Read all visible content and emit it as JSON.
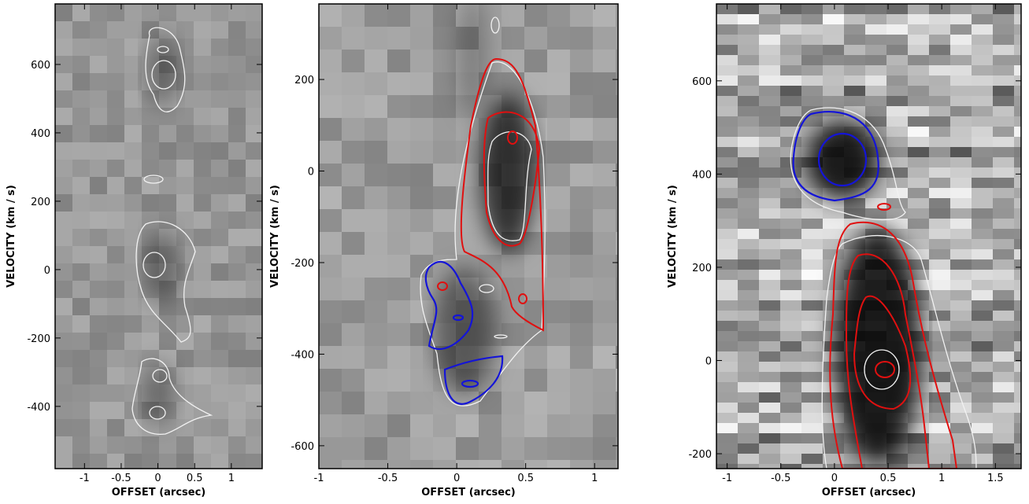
{
  "chart_data": [
    {
      "type": "image",
      "xlabel": "OFFSET (arcsec)",
      "ylabel": "VELOCITY (km / s)",
      "xlim": [
        -1.4,
        1.42
      ],
      "xticks": [
        -1,
        -0.5,
        0,
        0.5,
        1
      ],
      "ylim": [
        -582,
        777
      ],
      "yticks": [
        -400,
        -200,
        0,
        200,
        400,
        600
      ]
    },
    {
      "type": "image",
      "xlabel": "OFFSET (arcsec)",
      "ylabel": "VELOCITY (km / s)",
      "xlim": [
        -1,
        1.17
      ],
      "xticks": [
        -1,
        -0.5,
        0,
        0.5,
        1
      ],
      "ylim": [
        -650,
        365
      ],
      "yticks": [
        -600,
        -400,
        -200,
        0,
        200
      ]
    },
    {
      "type": "image",
      "xlabel": "OFFSET (arcsec)",
      "ylabel": "VELOCITY (km / s)",
      "xlim": [
        -1.1,
        1.74
      ],
      "xticks": [
        -1,
        -0.5,
        0,
        0.5,
        1,
        1.5
      ],
      "ylim": [
        -232,
        765
      ],
      "yticks": [
        -200,
        0,
        200,
        400,
        600
      ]
    }
  ]
}
